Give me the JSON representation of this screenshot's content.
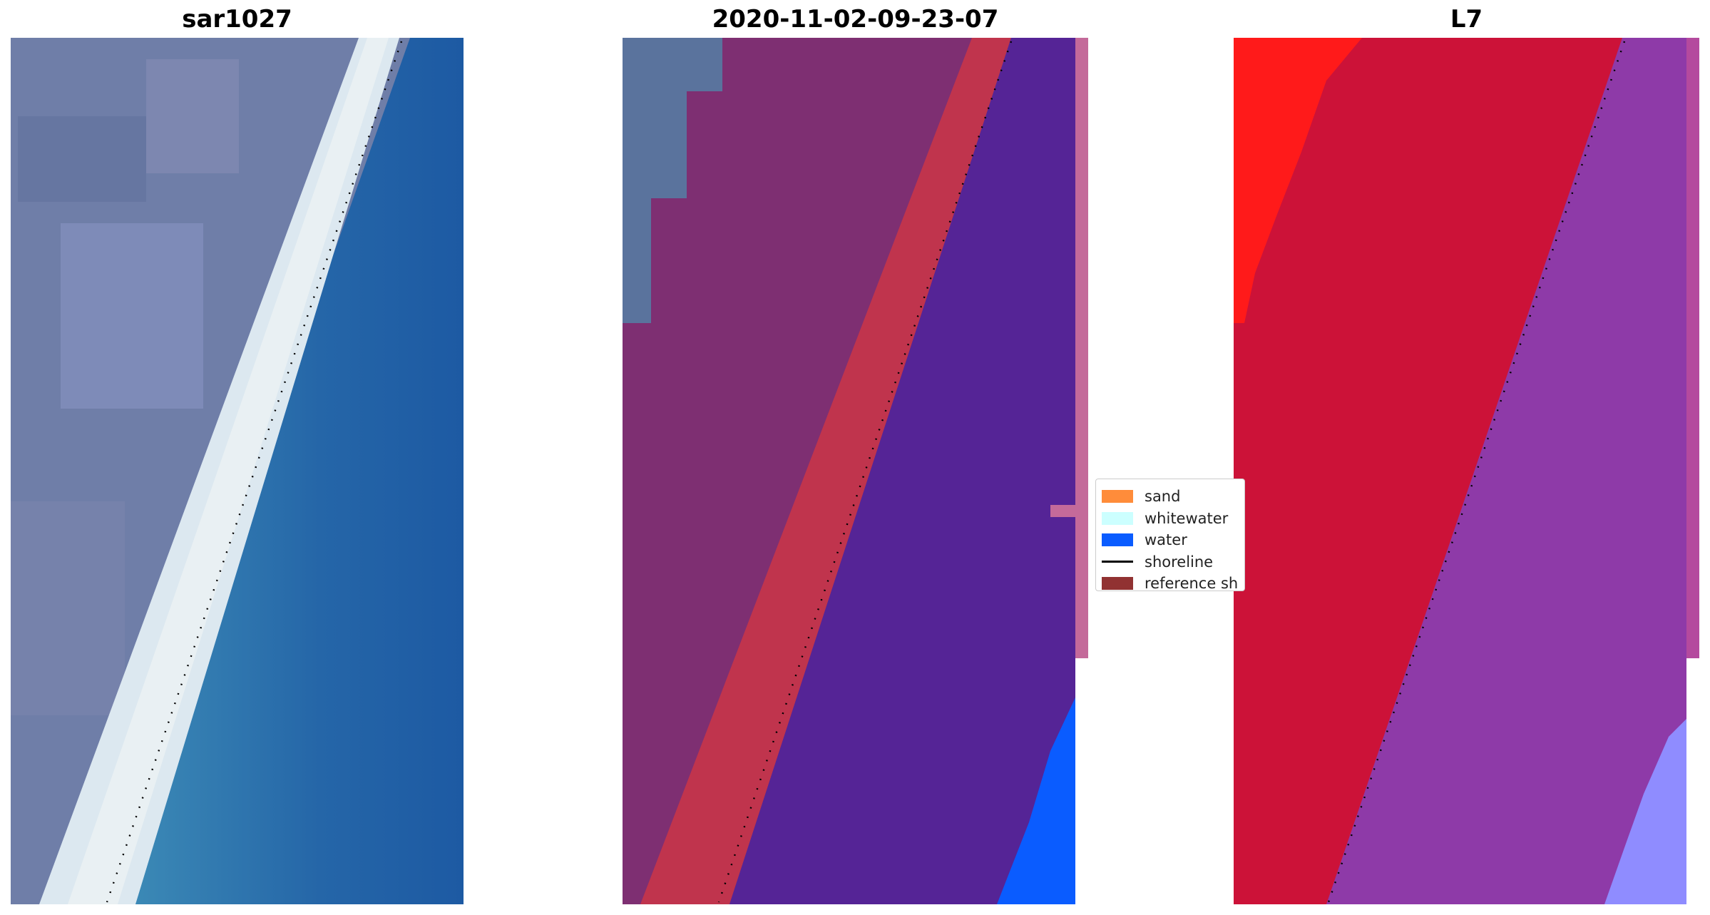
{
  "panels": [
    {
      "title": "sar1027"
    },
    {
      "title": "2020-11-02-09-23-07"
    },
    {
      "title": "L7"
    }
  ],
  "legend": {
    "items": [
      {
        "label": "sand",
        "color": "#ff8c3a",
        "kind": "patch"
      },
      {
        "label": "whitewater",
        "color": "#ccffff",
        "kind": "patch"
      },
      {
        "label": "water",
        "color": "#0a5cff",
        "kind": "patch"
      },
      {
        "label": "shoreline",
        "color": "#000000",
        "kind": "line"
      },
      {
        "label": "reference sh",
        "color": "#913232",
        "kind": "patch"
      }
    ]
  },
  "colors": {
    "rgb_land": "#6f7ea8",
    "rgb_sea": "#2466a8",
    "rgb_surf": "#dce8f0",
    "class_land": "#7e2f72",
    "class_band": "#c0344d",
    "class_water": "#552496",
    "class_blue": "#0a5cff",
    "class_edge": "#c46a9a",
    "l7_land": "#cc1238",
    "l7_red": "#ff1a1a",
    "l7_sea": "#8e3aa8",
    "l7_lav": "#8f8cff",
    "shoreline": "#000000"
  }
}
